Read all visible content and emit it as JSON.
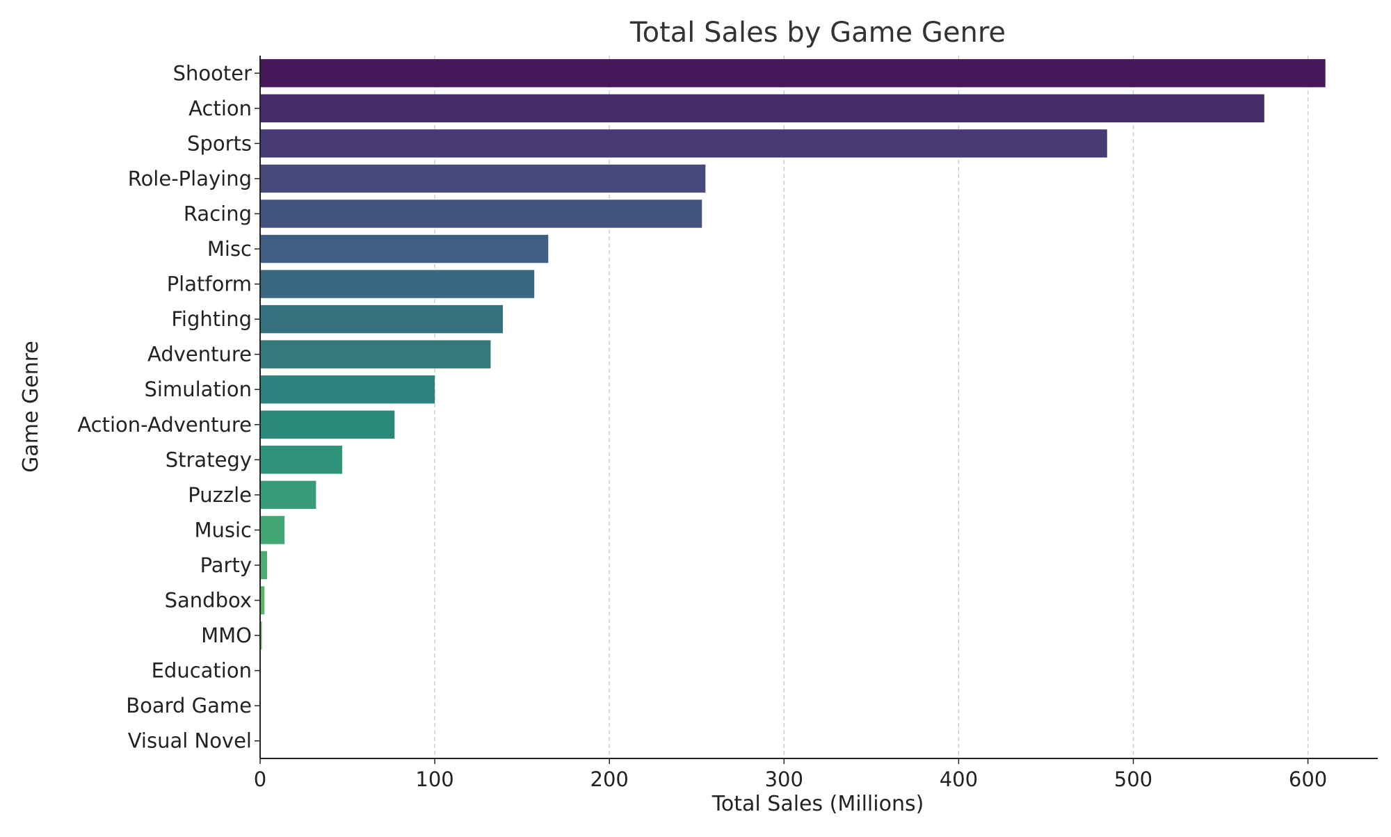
{
  "chart_data": {
    "type": "bar",
    "orientation": "horizontal",
    "title": "Total Sales by Game Genre",
    "xlabel": "Total Sales (Millions)",
    "ylabel": "Game Genre",
    "xlim": [
      0,
      640
    ],
    "xticks": [
      0,
      100,
      200,
      300,
      400,
      500,
      600
    ],
    "grid": "x-dashed",
    "categories": [
      "Shooter",
      "Action",
      "Sports",
      "Role-Playing",
      "Racing",
      "Misc",
      "Platform",
      "Fighting",
      "Adventure",
      "Simulation",
      "Action-Adventure",
      "Strategy",
      "Puzzle",
      "Music",
      "Party",
      "Sandbox",
      "MMO",
      "Education",
      "Board Game",
      "Visual Novel"
    ],
    "values": [
      610,
      575,
      485,
      255,
      253,
      165,
      157,
      139,
      132,
      100,
      77,
      47,
      32,
      14,
      4,
      2.5,
      1,
      0.3,
      0.2,
      0.1
    ],
    "colors": [
      "#471759",
      "#482b6b",
      "#483a75",
      "#47497b",
      "#43557f",
      "#3f5f82",
      "#3b6881",
      "#36717f",
      "#33797e",
      "#2f817d",
      "#2b897b",
      "#2f927a",
      "#369c78",
      "#42a574",
      "#4eac70",
      "#5ab36b",
      "#67ba66",
      "#76c05f",
      "#85c556",
      "#95c94c"
    ]
  }
}
